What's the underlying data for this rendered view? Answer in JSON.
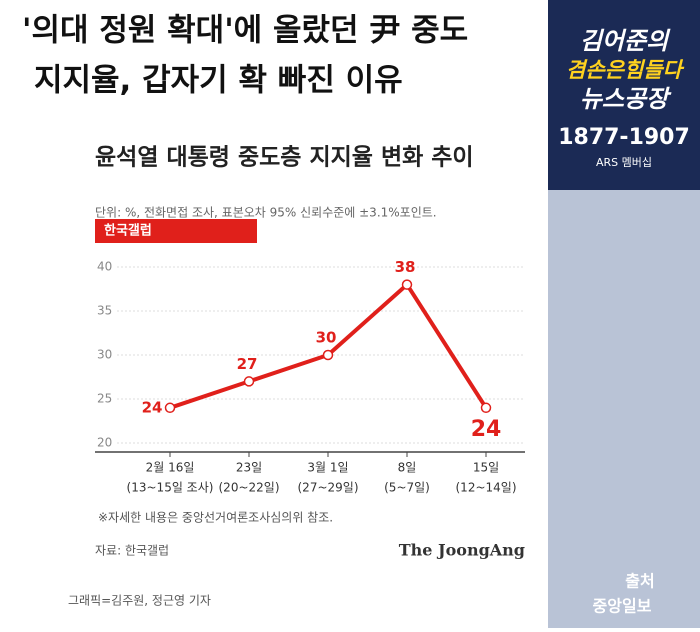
{
  "headline": {
    "line1": "'의대 정원 확대'에 올랐던 尹 중도",
    "line2": "지지율, 갑자기 확 빠진 이유"
  },
  "broadcast": {
    "show_line1": "김어준의",
    "show_line2": "겸손은힘들다",
    "show_line3": "뉴스공장",
    "phone": "1877-1907",
    "ars": "ARS 멤버십",
    "source_label": "출처",
    "source_name": "중앙일보"
  },
  "chart_data": {
    "type": "line",
    "title": "윤석열 대통령 중도층 지지율 변화 추이",
    "subtitle": "단위: %, 전화면접 조사, 표본오차 95% 신뢰수준에 ±3.1%포인트.",
    "series_label": "한국갤럽",
    "categories": [
      [
        "2월 16일",
        "(13~15일 조사)"
      ],
      [
        "23일",
        "(20~22일)"
      ],
      [
        "3월 1일",
        "(27~29일)"
      ],
      [
        "8일",
        "(5~7일)"
      ],
      [
        "15일",
        "(12~14일)"
      ]
    ],
    "values": [
      24,
      27,
      30,
      38,
      24
    ],
    "color": "#e0201b",
    "ylim": [
      20,
      40
    ],
    "yticks": [
      20,
      25,
      30,
      35,
      40
    ],
    "grid": true,
    "note": "※자세한 내용은 중앙선거여론조사심의위 참조.",
    "source": "자료: 한국갤럽",
    "brand": "The JoongAng",
    "credit": "그래픽=김주원, 정근영 기자"
  }
}
